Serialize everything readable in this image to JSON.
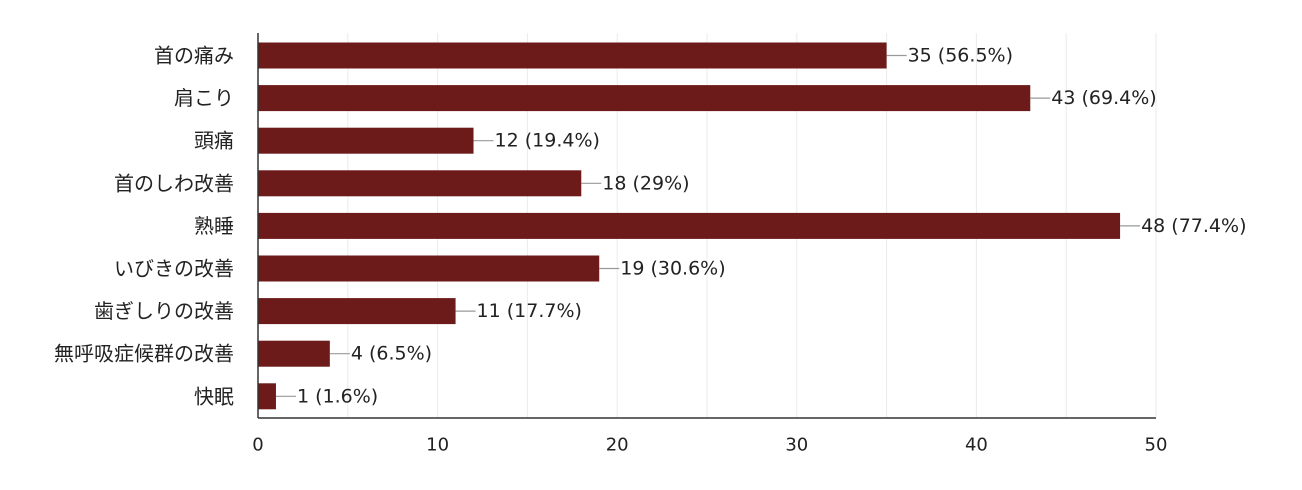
{
  "chart_data": {
    "type": "bar",
    "orientation": "horizontal",
    "categories": [
      "首の痛み",
      "肩こり",
      "頭痛",
      "首のしわ改善",
      "熟睡",
      "いびきの改善",
      "歯ぎしりの改善",
      "無呼吸症候群の改善",
      "快眠"
    ],
    "values": [
      35,
      43,
      12,
      18,
      48,
      19,
      11,
      4,
      1
    ],
    "data_labels": [
      "35 (56.5%)",
      "43 (69.4%)",
      "12 (19.4%)",
      "18 (29%)",
      "48 (77.4%)",
      "19 (30.6%)",
      "11 (17.7%)",
      "4 (6.5%)",
      "1 (1.6%)"
    ],
    "xlim": [
      0,
      50
    ],
    "xticks": [
      0,
      10,
      20,
      30,
      40,
      50
    ],
    "minor_grid": true,
    "bar_color": "#6d1a1a",
    "title": "",
    "xlabel": "",
    "ylabel": ""
  }
}
